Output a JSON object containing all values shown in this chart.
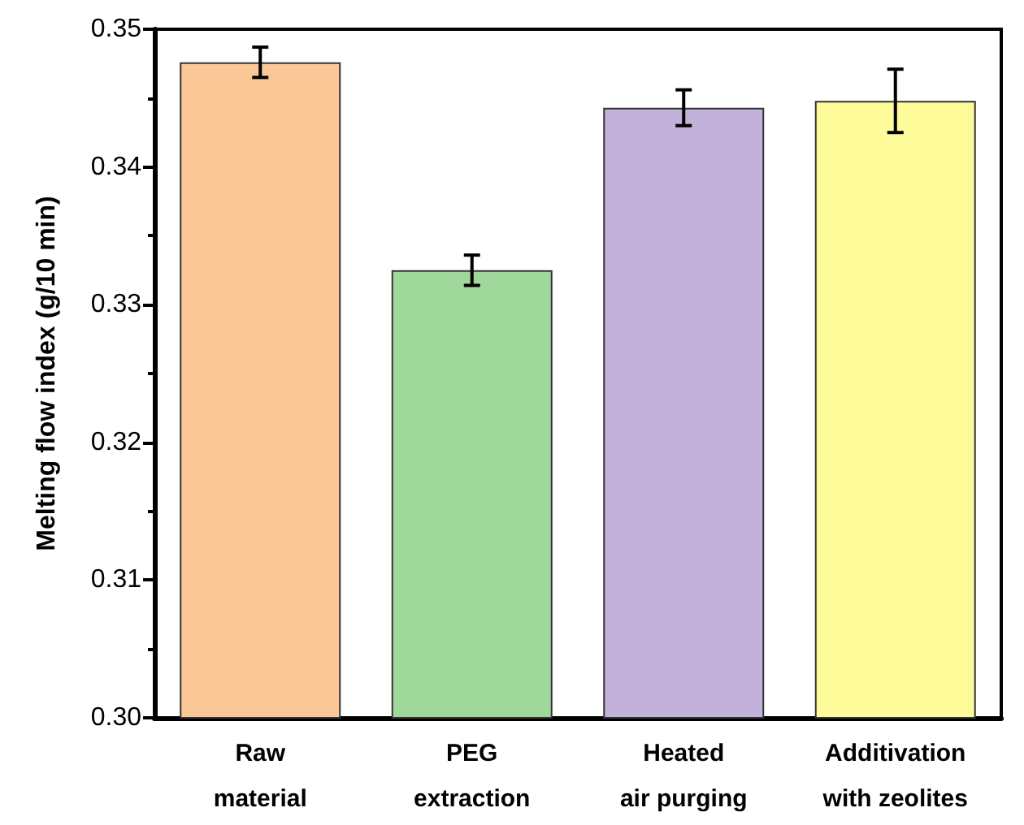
{
  "chart_data": {
    "type": "bar",
    "ylabel": "Melting flow index (g/10 min)",
    "categories": [
      "Raw\nmaterial",
      "PEG\nextraction",
      "Heated\nair purging",
      "Additivation\nwith zeolites"
    ],
    "values": [
      0.3476,
      0.3325,
      0.3443,
      0.3448
    ],
    "errors": [
      0.0011,
      0.0011,
      0.0013,
      0.0023
    ],
    "colors": [
      "#fbc797",
      "#a0d89c",
      "#c2b1d8",
      "#fefb9a"
    ],
    "ylim": [
      0.3,
      0.35
    ],
    "yticks": [
      {
        "value": 0.3,
        "label": "0.30"
      },
      {
        "value": 0.31,
        "label": "0.31"
      },
      {
        "value": 0.32,
        "label": "0.32"
      },
      {
        "value": 0.33,
        "label": "0.33"
      },
      {
        "value": 0.34,
        "label": "0.34"
      },
      {
        "value": 0.35,
        "label": "0.35"
      }
    ]
  }
}
